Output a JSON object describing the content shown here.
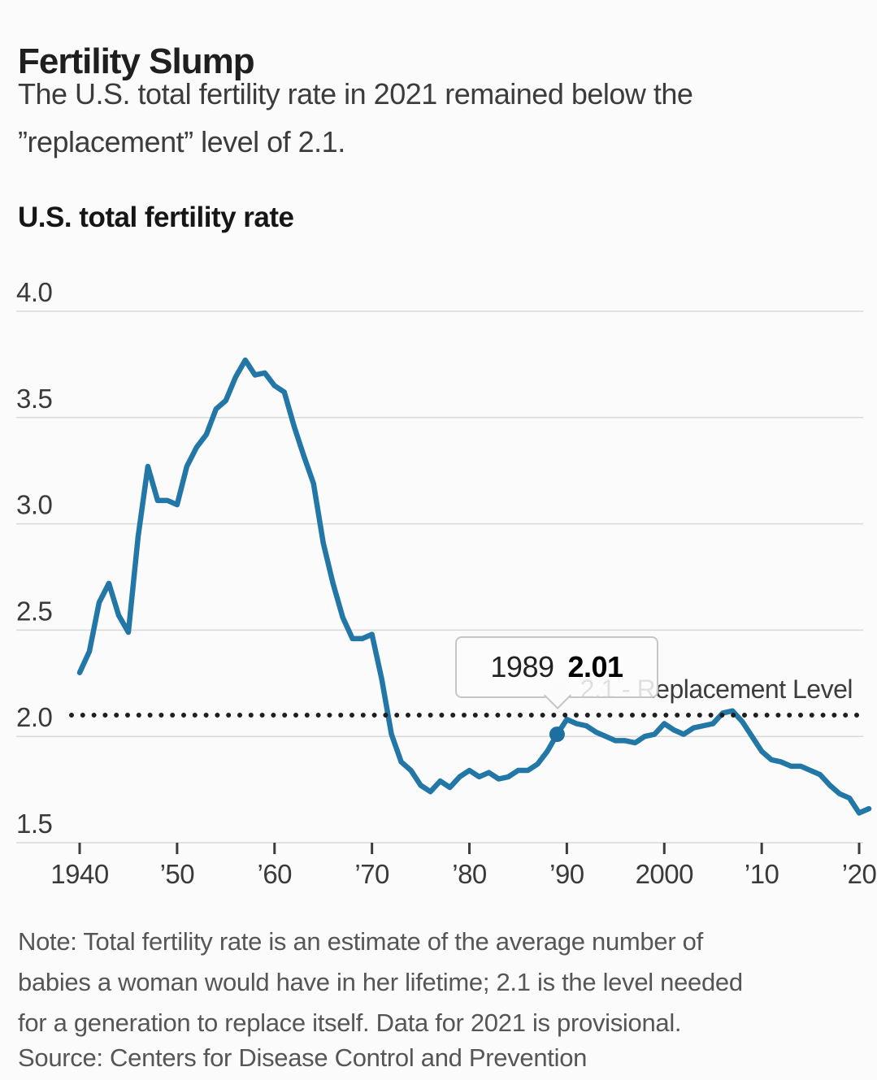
{
  "header": {
    "title": "Fertility Slump",
    "subtitle_lines": [
      "The U.S. total fertility rate in 2021 remained below the",
      "”replacement” level of 2.1."
    ]
  },
  "chart": {
    "tooltip": {
      "year": "1989",
      "value": "2.01"
    }
  },
  "chart_data": {
    "type": "line",
    "title": "U.S. total fertility rate",
    "xlabel": "",
    "ylabel": "",
    "xlim": [
      1940,
      2021
    ],
    "ylim": [
      1.5,
      4.0
    ],
    "grid": "horizontal",
    "line_color": "#2277a6",
    "marker_color": "#1d6f9f",
    "y_ticks": [
      "4.0",
      "3.5",
      "3.0",
      "2.5",
      "2.0",
      "1.5"
    ],
    "y_tick_values": [
      4.0,
      3.5,
      3.0,
      2.5,
      2.0,
      1.5
    ],
    "x_ticks": [
      {
        "value": 1940,
        "label": "1940"
      },
      {
        "value": 1950,
        "label": "’50"
      },
      {
        "value": 1960,
        "label": "’60"
      },
      {
        "value": 1970,
        "label": "’70"
      },
      {
        "value": 1980,
        "label": "’80"
      },
      {
        "value": 1990,
        "label": "’90"
      },
      {
        "value": 2000,
        "label": "2000"
      },
      {
        "value": 2010,
        "label": "’10"
      },
      {
        "value": 2020,
        "label": "’20"
      }
    ],
    "replacement_line": {
      "value": 2.1,
      "label": "2.1 - Replacement Level"
    },
    "highlight_point": {
      "year": 1989,
      "value": 2.01
    },
    "series": [
      {
        "name": "U.S. total fertility rate",
        "x": [
          1940,
          1941,
          1942,
          1943,
          1944,
          1945,
          1946,
          1947,
          1948,
          1949,
          1950,
          1951,
          1952,
          1953,
          1954,
          1955,
          1956,
          1957,
          1958,
          1959,
          1960,
          1961,
          1962,
          1963,
          1964,
          1965,
          1966,
          1967,
          1968,
          1969,
          1970,
          1971,
          1972,
          1973,
          1974,
          1975,
          1976,
          1977,
          1978,
          1979,
          1980,
          1981,
          1982,
          1983,
          1984,
          1985,
          1986,
          1987,
          1988,
          1989,
          1990,
          1991,
          1992,
          1993,
          1994,
          1995,
          1996,
          1997,
          1998,
          1999,
          2000,
          2001,
          2002,
          2003,
          2004,
          2005,
          2006,
          2007,
          2008,
          2009,
          2010,
          2011,
          2012,
          2013,
          2014,
          2015,
          2016,
          2017,
          2018,
          2019,
          2020,
          2021
        ],
        "y": [
          2.3,
          2.4,
          2.63,
          2.72,
          2.57,
          2.49,
          2.94,
          3.27,
          3.11,
          3.11,
          3.09,
          3.27,
          3.36,
          3.42,
          3.54,
          3.58,
          3.69,
          3.77,
          3.7,
          3.71,
          3.65,
          3.62,
          3.46,
          3.32,
          3.19,
          2.91,
          2.72,
          2.56,
          2.46,
          2.46,
          2.48,
          2.27,
          2.01,
          1.88,
          1.84,
          1.77,
          1.74,
          1.79,
          1.76,
          1.81,
          1.84,
          1.81,
          1.83,
          1.8,
          1.81,
          1.84,
          1.84,
          1.87,
          1.93,
          2.01,
          2.08,
          2.06,
          2.05,
          2.02,
          2.0,
          1.98,
          1.98,
          1.97,
          2.0,
          2.01,
          2.06,
          2.03,
          2.01,
          2.04,
          2.05,
          2.06,
          2.11,
          2.12,
          2.07,
          2.0,
          1.93,
          1.89,
          1.88,
          1.86,
          1.86,
          1.84,
          1.82,
          1.77,
          1.73,
          1.71,
          1.64,
          1.66
        ]
      }
    ]
  },
  "footer": {
    "note_lines": [
      "Note: Total fertility rate is an estimate of the average number of",
      "babies a woman would have in her lifetime; 2.1 is the level needed",
      "for a generation to replace itself. Data for 2021 is provisional."
    ],
    "source": "Source: Centers for Disease Control and Prevention"
  }
}
